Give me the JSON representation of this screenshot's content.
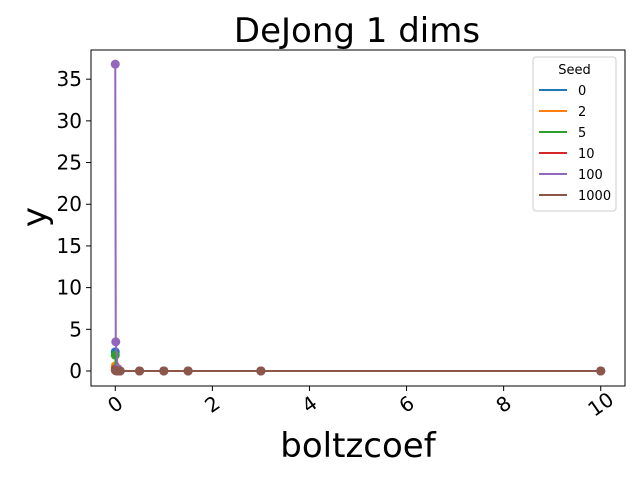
{
  "chart_data": {
    "type": "line",
    "title": "DeJong 1 dims",
    "xlabel": "boltzcoef",
    "ylabel": "y",
    "xlim": [
      -0.5,
      10.5
    ],
    "ylim": [
      -1.8,
      38.5
    ],
    "xticks": [
      0,
      2,
      4,
      6,
      8,
      10
    ],
    "yticks": [
      0,
      5,
      10,
      15,
      20,
      25,
      30,
      35
    ],
    "grid": false,
    "legend": {
      "title": "Seed",
      "placement": "top-right"
    },
    "x": [
      0.0,
      0.01,
      0.05,
      0.1,
      0.5,
      1.0,
      1.5,
      3.0,
      10.0
    ],
    "series": [
      {
        "name": "0",
        "color": "#1f77b4",
        "values": [
          2.3,
          0.4,
          0.05,
          0.0,
          0.0,
          0.0,
          0.0,
          0.0,
          0.0
        ]
      },
      {
        "name": "2",
        "color": "#ff7f0e",
        "values": [
          0.6,
          0.1,
          0.0,
          0.0,
          0.0,
          0.0,
          0.0,
          0.0,
          0.0
        ]
      },
      {
        "name": "5",
        "color": "#2ca02c",
        "values": [
          1.9,
          0.3,
          0.02,
          0.0,
          0.0,
          0.0,
          0.0,
          0.0,
          0.0
        ]
      },
      {
        "name": "10",
        "color": "#d62728",
        "values": [
          0.2,
          0.05,
          0.0,
          0.0,
          0.0,
          0.0,
          0.0,
          0.0,
          0.0
        ]
      },
      {
        "name": "100",
        "color": "#9467bd",
        "values": [
          36.8,
          3.5,
          0.3,
          0.0,
          0.0,
          0.0,
          0.0,
          0.0,
          0.0
        ]
      },
      {
        "name": "1000",
        "color": "#8c564b",
        "values": [
          0.1,
          0.02,
          0.0,
          0.0,
          0.0,
          0.0,
          0.0,
          0.0,
          0.0
        ]
      }
    ]
  }
}
